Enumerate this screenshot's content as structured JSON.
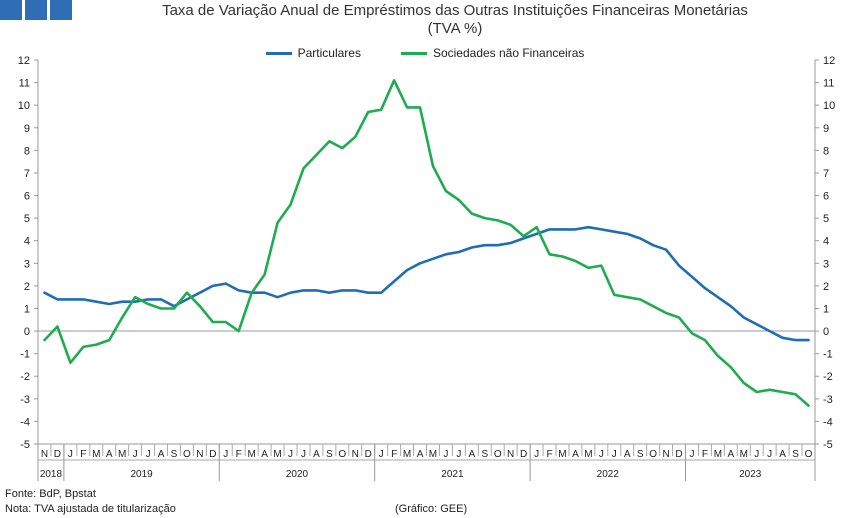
{
  "header": {
    "title_line1": "Taxa de Variação Anual de Empréstimos das Outras Instituições Financeiras Monetárias",
    "title_line2": "(TVA %)"
  },
  "footer": {
    "source": "Fonte: BdP, Bpstat",
    "note": "Nota: TVA ajustada de titularização",
    "credit": "(Gráfico: GEE)"
  },
  "chart_data": {
    "type": "line",
    "title": "Taxa de Variação Anual de Empréstimos das Outras Instituições Financeiras Monetárias (TVA %)",
    "x_months": [
      "N",
      "D",
      "J",
      "F",
      "M",
      "A",
      "M",
      "J",
      "J",
      "A",
      "S",
      "O",
      "N",
      "D",
      "J",
      "F",
      "M",
      "A",
      "M",
      "J",
      "J",
      "A",
      "S",
      "O",
      "N",
      "D",
      "J",
      "F",
      "M",
      "A",
      "M",
      "J",
      "J",
      "A",
      "S",
      "O",
      "N",
      "D",
      "J",
      "F",
      "M",
      "A",
      "M",
      "J",
      "J",
      "A",
      "S",
      "O",
      "N",
      "D",
      "J",
      "F",
      "M",
      "A",
      "M",
      "J",
      "J",
      "A",
      "S",
      "O"
    ],
    "x_years": [
      {
        "label": "2018",
        "start": 0,
        "end": 1
      },
      {
        "label": "2019",
        "start": 2,
        "end": 13
      },
      {
        "label": "2020",
        "start": 14,
        "end": 25
      },
      {
        "label": "2021",
        "start": 26,
        "end": 37
      },
      {
        "label": "2022",
        "start": 38,
        "end": 49
      },
      {
        "label": "2023",
        "start": 50,
        "end": 59
      }
    ],
    "ylim": [
      -5,
      12
    ],
    "yticks": [
      -5,
      -4,
      -3,
      -2,
      -1,
      0,
      1,
      2,
      3,
      4,
      5,
      6,
      7,
      8,
      9,
      10,
      11,
      12
    ],
    "legend_position": "top-center",
    "grid": false,
    "series": [
      {
        "name": "Particulares",
        "color": "#1f6db5",
        "values": [
          1.7,
          1.4,
          1.4,
          1.4,
          1.3,
          1.2,
          1.3,
          1.3,
          1.4,
          1.4,
          1.1,
          1.4,
          1.7,
          2.0,
          2.1,
          1.8,
          1.7,
          1.7,
          1.5,
          1.7,
          1.8,
          1.8,
          1.7,
          1.8,
          1.8,
          1.7,
          1.7,
          2.2,
          2.7,
          3.0,
          3.2,
          3.4,
          3.5,
          3.7,
          3.8,
          3.8,
          3.9,
          4.1,
          4.3,
          4.5,
          4.5,
          4.5,
          4.6,
          4.5,
          4.4,
          4.3,
          4.1,
          3.8,
          3.6,
          2.9,
          2.4,
          1.9,
          1.5,
          1.1,
          0.6,
          0.3,
          0.0,
          -0.3,
          -0.4,
          -0.4
        ]
      },
      {
        "name": "Sociedades não Financeiras",
        "color": "#1fac4f",
        "values": [
          -0.4,
          0.2,
          -1.4,
          -0.7,
          -0.6,
          -0.4,
          0.6,
          1.5,
          1.2,
          1.0,
          1.0,
          1.7,
          1.1,
          0.4,
          0.4,
          0.0,
          1.7,
          2.5,
          4.8,
          5.6,
          7.2,
          7.8,
          8.4,
          8.1,
          8.6,
          9.7,
          9.8,
          11.1,
          9.9,
          9.9,
          7.3,
          6.2,
          5.8,
          5.2,
          5.0,
          4.9,
          4.7,
          4.2,
          4.6,
          3.4,
          3.3,
          3.1,
          2.8,
          2.9,
          1.6,
          1.5,
          1.4,
          1.1,
          0.8,
          0.6,
          -0.1,
          -0.4,
          -1.1,
          -1.6,
          -2.3,
          -2.7,
          -2.6,
          -2.7,
          -2.8,
          -3.3
        ]
      }
    ]
  }
}
